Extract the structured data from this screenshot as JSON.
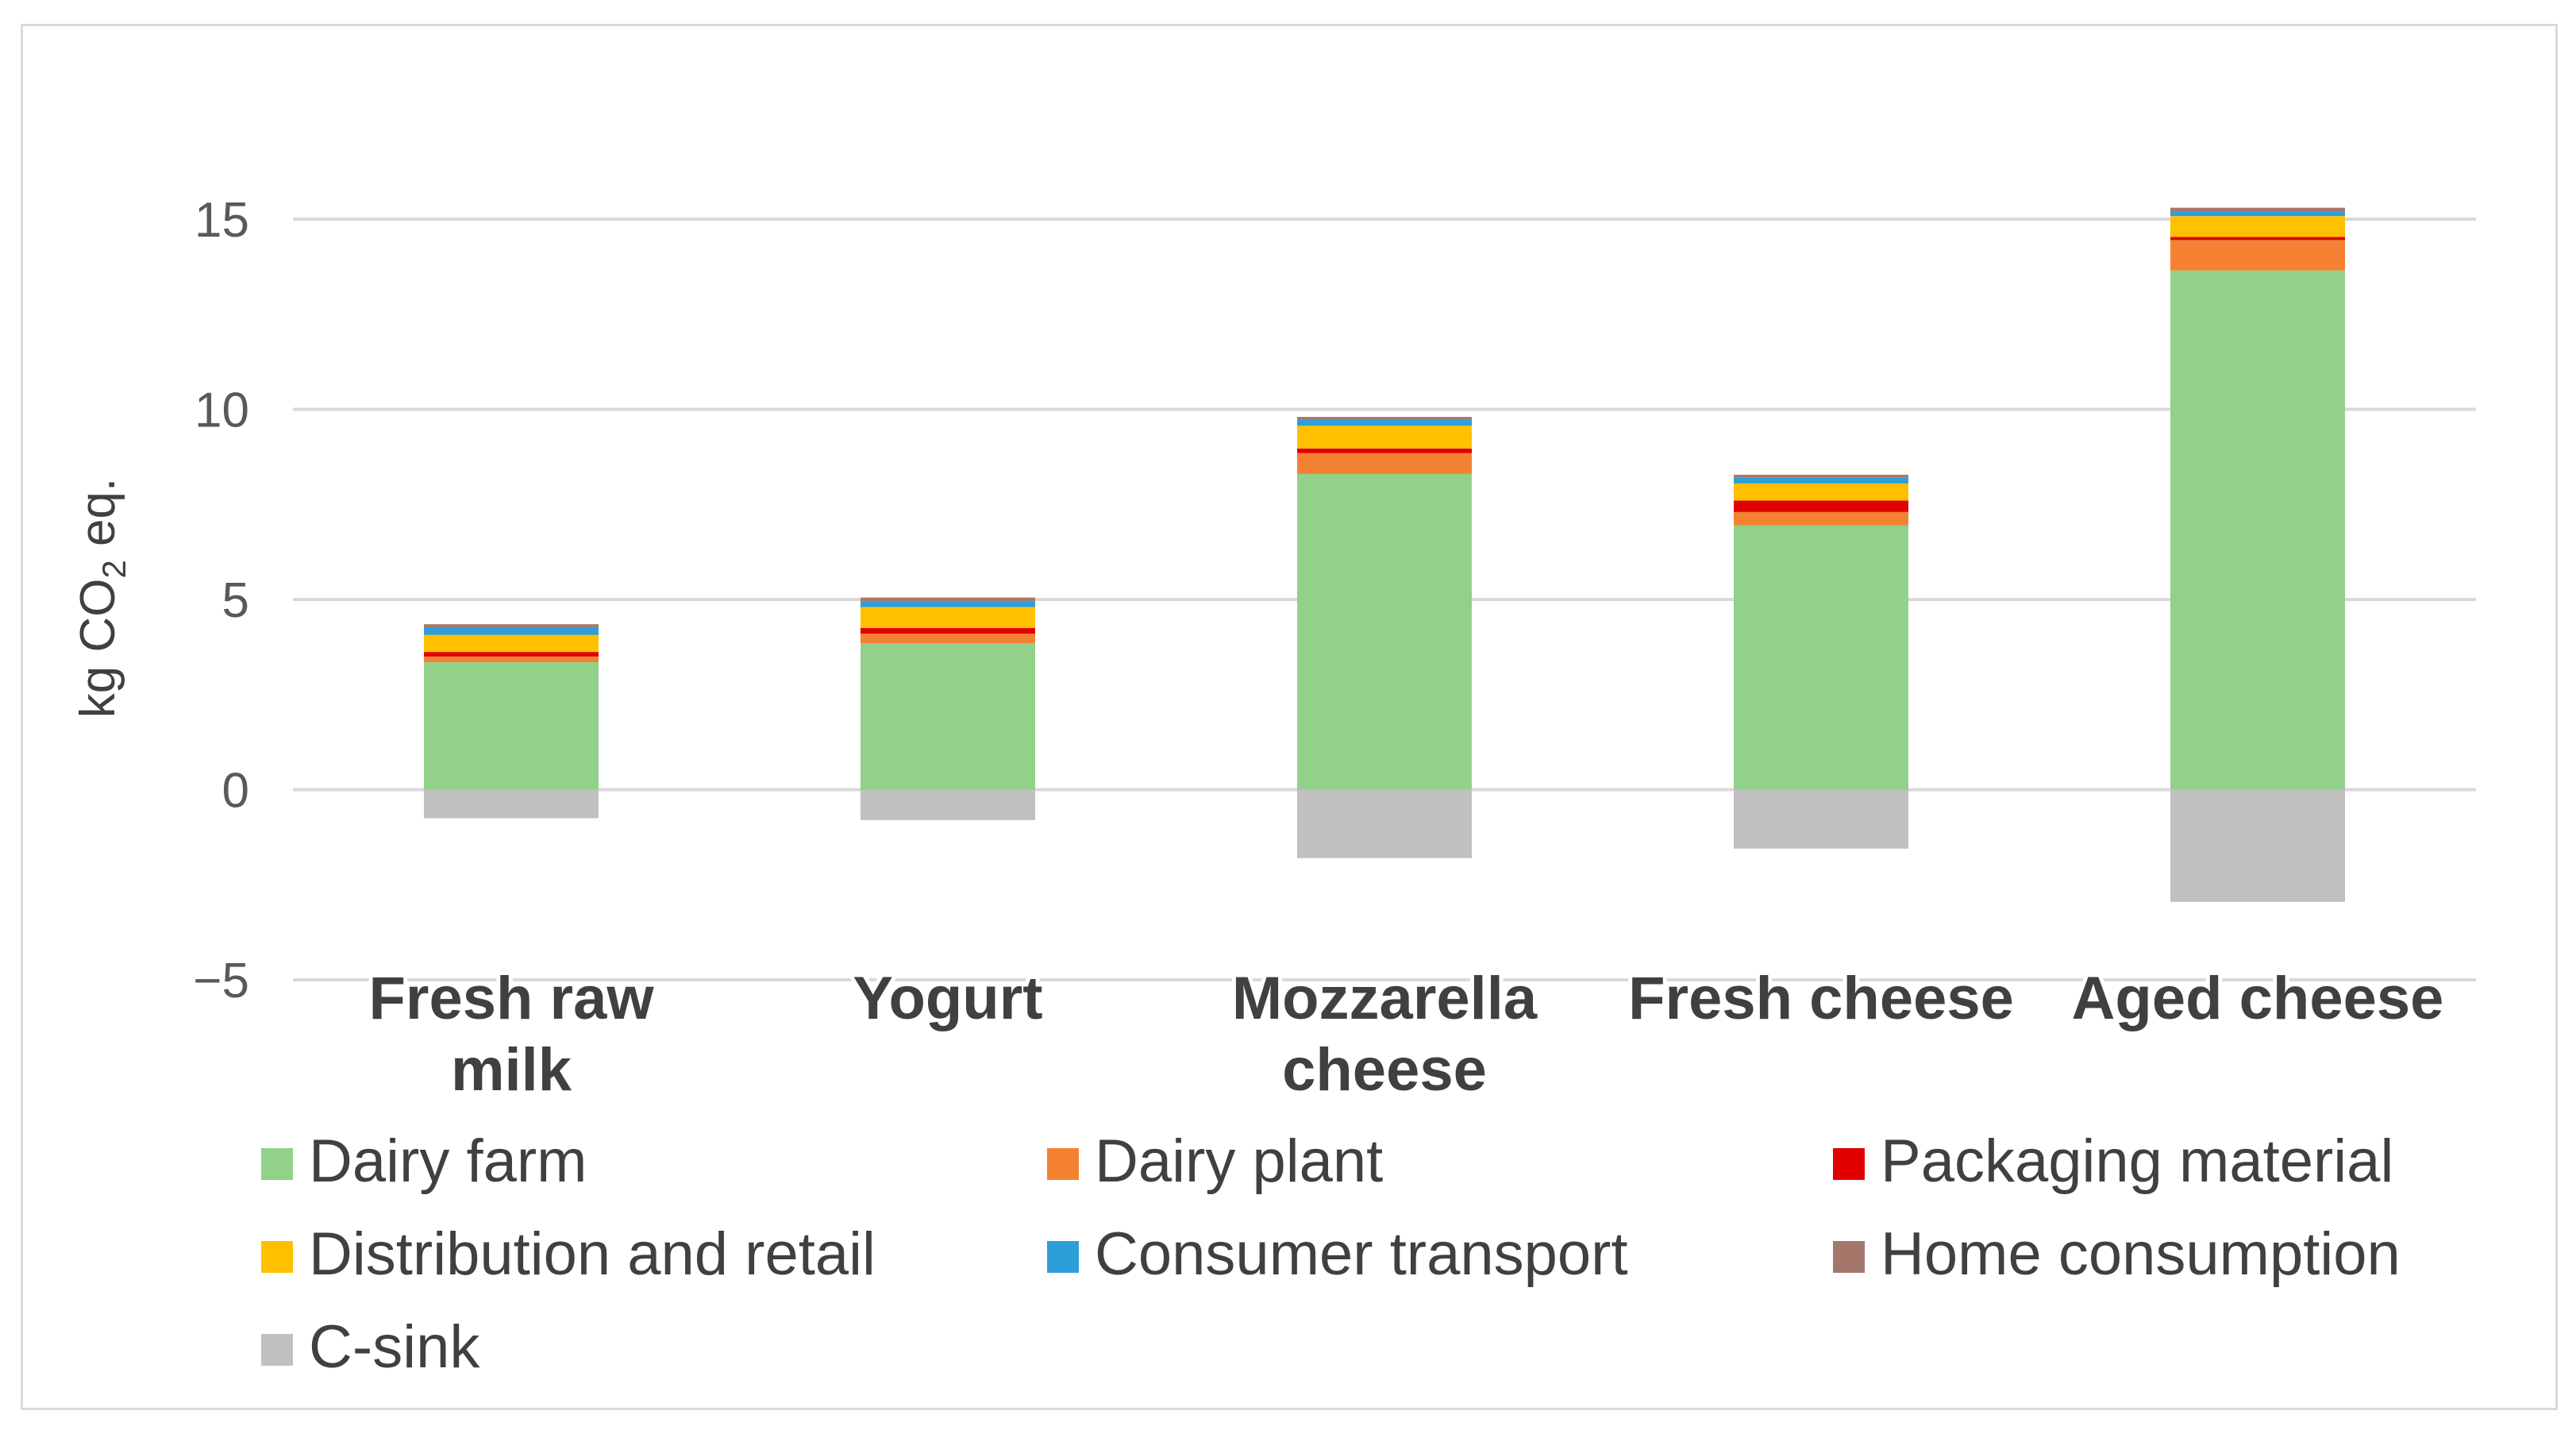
{
  "chart_data": {
    "type": "bar",
    "stacked": true,
    "categories": [
      [
        "Fresh raw",
        "milk"
      ],
      [
        "Yogurt"
      ],
      [
        "Mozzarella",
        "cheese"
      ],
      [
        "Fresh cheese"
      ],
      [
        "Aged cheese"
      ]
    ],
    "ylabel": {
      "prefix": "kg CO",
      "sub": "2",
      "suffix": " eq."
    },
    "ylim": [
      -5,
      15
    ],
    "yticks": [
      -5,
      0,
      5,
      10,
      15
    ],
    "ytick_labels": [
      "−5",
      "0",
      "5",
      "10",
      "15"
    ],
    "grid": true,
    "series": [
      {
        "name": "Dairy farm",
        "color": "#92d18a",
        "values": [
          3.35,
          3.85,
          8.3,
          6.95,
          13.65
        ]
      },
      {
        "name": "Dairy plant",
        "color": "#f58232",
        "values": [
          0.15,
          0.25,
          0.55,
          0.35,
          0.8
        ]
      },
      {
        "name": "Packaging material",
        "color": "#e00000",
        "values": [
          0.12,
          0.15,
          0.12,
          0.3,
          0.08
        ]
      },
      {
        "name": "Distribution and retail",
        "color": "#ffc000",
        "values": [
          0.45,
          0.55,
          0.6,
          0.45,
          0.55
        ]
      },
      {
        "name": "Consumer transport",
        "color": "#2d9fd8",
        "values": [
          0.2,
          0.15,
          0.15,
          0.15,
          0.12
        ]
      },
      {
        "name": "Home consumption",
        "color": "#a5776b",
        "values": [
          0.08,
          0.1,
          0.08,
          0.08,
          0.1
        ]
      },
      {
        "name": "C-sink",
        "color": "#c0c0c0",
        "values": [
          -0.75,
          -0.8,
          -1.8,
          -1.55,
          -2.95
        ]
      }
    ],
    "legend_position": "bottom"
  }
}
